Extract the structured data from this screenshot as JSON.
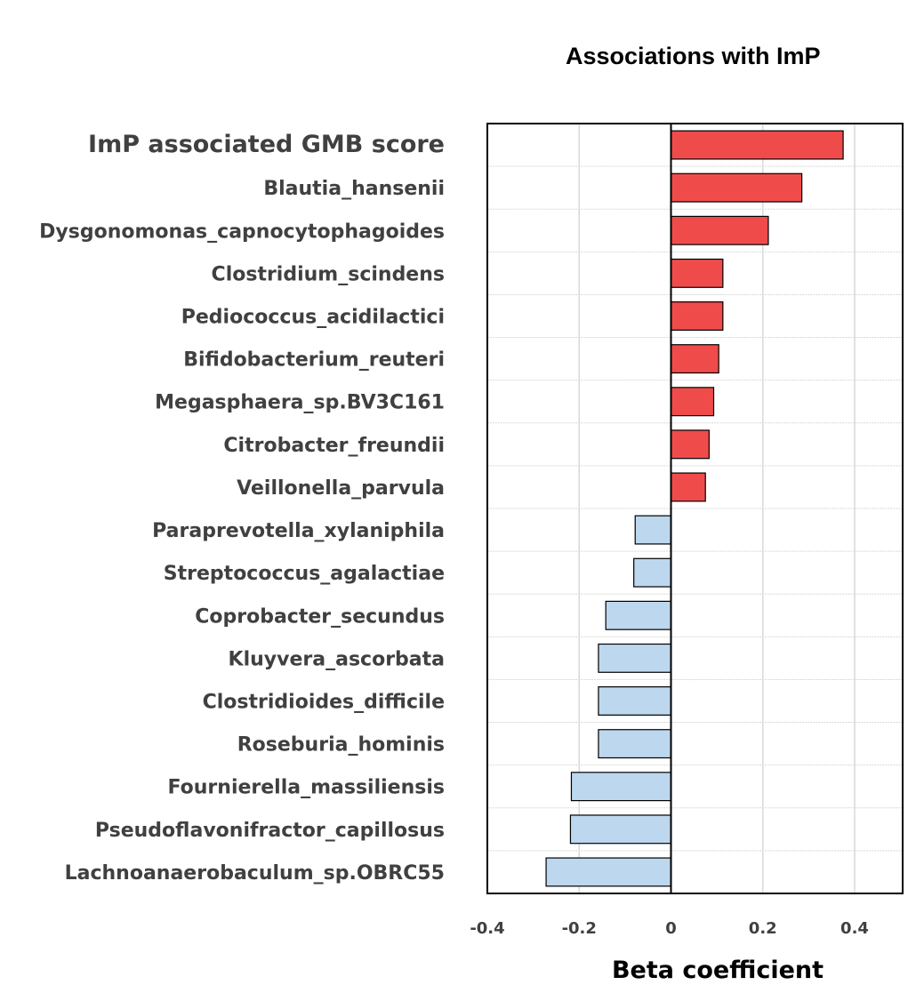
{
  "chart_data": {
    "type": "bar",
    "orientation": "horizontal",
    "title": "Associations with ImP",
    "xlabel": "Beta coefficient",
    "ylabel": "",
    "xlim": [
      -0.4,
      0.5
    ],
    "xticks": [
      -0.4,
      -0.2,
      0,
      0.2,
      0.4
    ],
    "xtick_labels": [
      "-0.4",
      "-0.2",
      "0",
      "0.2",
      "0.4"
    ],
    "grid": "vertical",
    "categories": [
      "ImP associated GMB score",
      "Blautia_hansenii",
      "Dysgonomonas_capnocytophagoides",
      "Clostridium_scindens",
      "Pediococcus_acidilactici",
      "Bifidobacterium_reuteri",
      "Megasphaera_sp.BV3C161",
      "Citrobacter_freundii",
      "Veillonella_parvula",
      "Paraprevotella_xylaniphila",
      "Streptococcus_agalactiae",
      "Coprobacter_secundus",
      "Kluyvera_ascorbata",
      "Clostridioides_difficile",
      "Roseburia_hominis",
      "Fournierella_massiliensis",
      "Pseudoflavonifractor_capillosus",
      "Lachnoanaerobaculum_sp.OBRC55"
    ],
    "values": [
      0.375,
      0.285,
      0.212,
      0.113,
      0.113,
      0.104,
      0.093,
      0.083,
      0.075,
      -0.078,
      -0.081,
      -0.142,
      -0.158,
      -0.158,
      -0.158,
      -0.217,
      -0.219,
      -0.272
    ],
    "colors": {
      "positive": "#f04b4b",
      "negative": "#bdd7ee",
      "bar_outline": "#000000",
      "grid": "#d9d9d9",
      "row_divider": "#d9d9d9"
    }
  }
}
